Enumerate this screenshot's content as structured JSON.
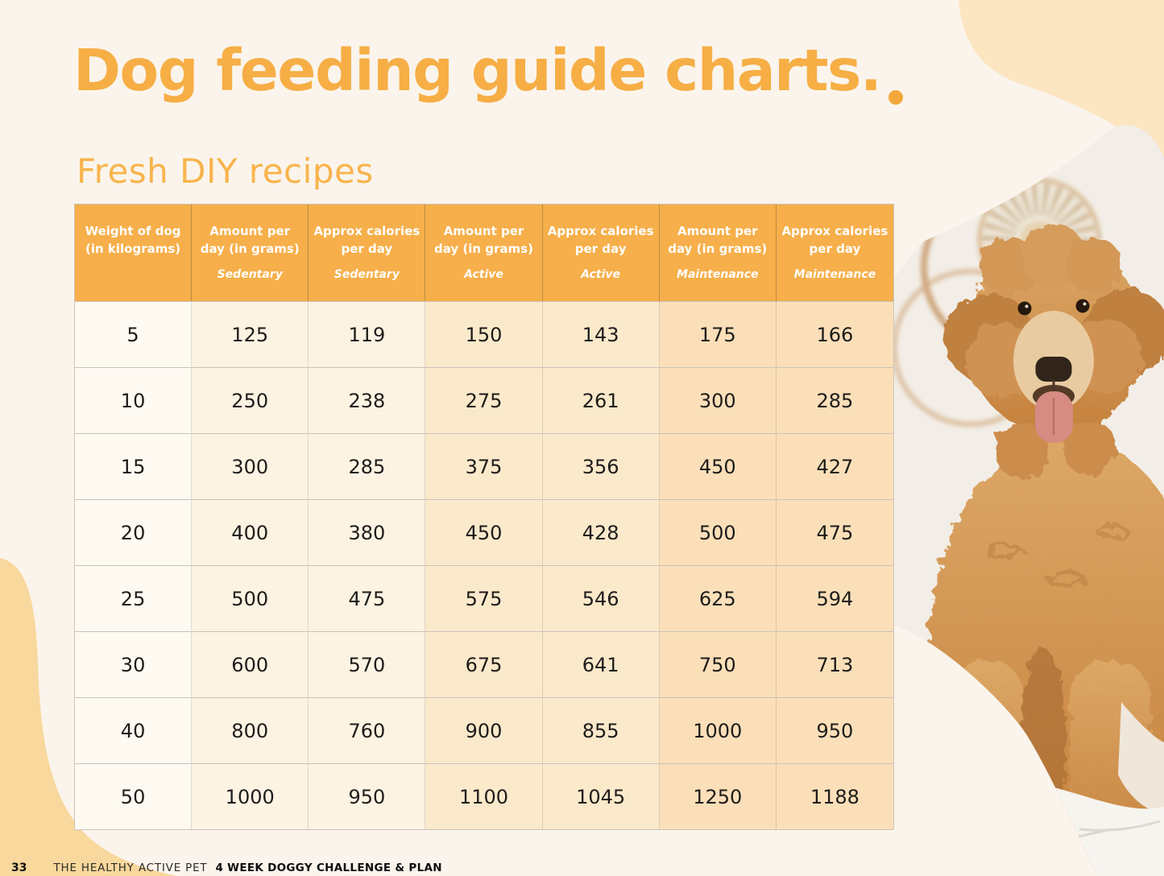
{
  "page": {
    "title": "Dog feeding guide charts.",
    "subtitle": "Fresh DIY recipes",
    "footer": {
      "page_number": "33",
      "brand": "THE HEALTHY ACTIVE PET",
      "plan_title": "4 WEEK DOGGY CHALLENGE & PLAN"
    },
    "photo": {
      "description": "Fluffy golden doodle dog with tongue out, sitting on a white bed in front of a round woven macrame wall hanging"
    }
  },
  "colors": {
    "page_bg": "#FAF4EC",
    "title_orange": "#F6AE45",
    "subtitle_orange": "#F8B44C",
    "header_bg": "#F6AF4A",
    "header_text": "#FFFFFF",
    "accent_dot": "#F3A83B",
    "blob_top_right": "#FCE5C1",
    "blob_bottom_left": "#F8D89C",
    "col_weight_bg": "#FEFAF2",
    "col_sedentary_bg": "#FDF3E3",
    "col_active_bg": "#FBE9CB",
    "col_maintenance_bg": "#FBDFB9",
    "body_text": "#1D1C1A"
  },
  "table": {
    "columns": [
      {
        "title": "Weight of dog (in kilograms)",
        "subtitle": ""
      },
      {
        "title": "Amount per day (in grams)",
        "subtitle": "Sedentary"
      },
      {
        "title": "Approx calories per day",
        "subtitle": "Sedentary"
      },
      {
        "title": "Amount per day (in grams)",
        "subtitle": "Active"
      },
      {
        "title": "Approx calories per day",
        "subtitle": "Active"
      },
      {
        "title": "Amount per day (in grams)",
        "subtitle": "Maintenance"
      },
      {
        "title": "Approx calories per day",
        "subtitle": "Maintenance"
      }
    ],
    "rows": [
      [
        "5",
        "125",
        "119",
        "150",
        "143",
        "175",
        "166"
      ],
      [
        "10",
        "250",
        "238",
        "275",
        "261",
        "300",
        "285"
      ],
      [
        "15",
        "300",
        "285",
        "375",
        "356",
        "450",
        "427"
      ],
      [
        "20",
        "400",
        "380",
        "450",
        "428",
        "500",
        "475"
      ],
      [
        "25",
        "500",
        "475",
        "575",
        "546",
        "625",
        "594"
      ],
      [
        "30",
        "600",
        "570",
        "675",
        "641",
        "750",
        "713"
      ],
      [
        "40",
        "800",
        "760",
        "900",
        "855",
        "1000",
        "950"
      ],
      [
        "50",
        "1000",
        "950",
        "1100",
        "1045",
        "1250",
        "1188"
      ]
    ]
  }
}
